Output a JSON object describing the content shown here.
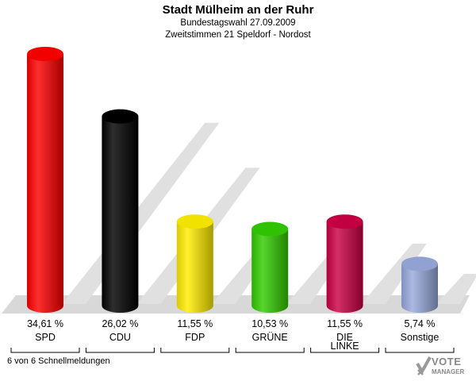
{
  "header": {
    "title": "Stadt Mülheim an der Ruhr",
    "subtitle1": "Bundestagswahl 27.09.2009",
    "subtitle2": "Zweitstimmen 21 Speldorf - Nordost"
  },
  "footer": {
    "text": "6 von 6 Schnellmeldungen"
  },
  "logo": {
    "line1": "VOTE",
    "line2": "MANAGER",
    "icon": "checkmark-x-logo-icon"
  },
  "chart_data": {
    "type": "bar",
    "categories": [
      "SPD",
      "CDU",
      "FDP",
      "GRÜNE",
      "DIE LINKE",
      "Sonstige"
    ],
    "category_lines": [
      [
        "SPD"
      ],
      [
        "CDU"
      ],
      [
        "FDP"
      ],
      [
        "GRÜNE"
      ],
      [
        "DIE",
        "LINKE"
      ],
      [
        "Sonstige"
      ]
    ],
    "values": [
      34.61,
      26.02,
      11.55,
      10.53,
      11.55,
      5.74
    ],
    "value_labels": [
      "34,61 %",
      "26,02 %",
      "11,55 %",
      "10,53 %",
      "11,55 %",
      "5,74 %"
    ],
    "colors": [
      "#ff0000",
      "#000000",
      "#ffee00",
      "#33cc00",
      "#cc0044",
      "#99aadd"
    ],
    "ylim": [
      0,
      36
    ],
    "grid": false,
    "legend": "none"
  }
}
